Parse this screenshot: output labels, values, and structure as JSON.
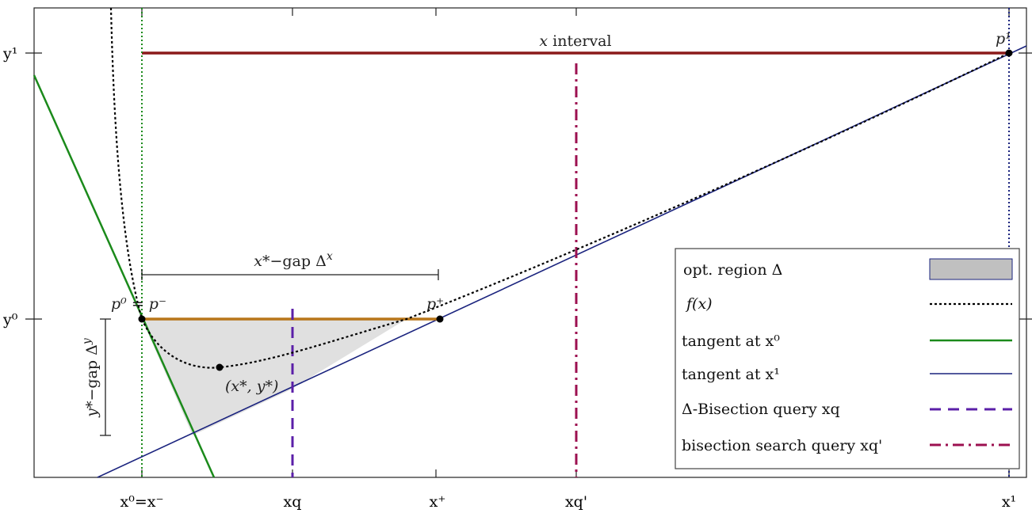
{
  "diagram": {
    "x_ticks": {
      "x0": "x⁰=x⁻",
      "xq": "xq",
      "xplus": "x⁺",
      "xqprime": "xq'",
      "x1": "x¹"
    },
    "y_ticks": {
      "y1": "y¹",
      "y0": "y⁰"
    },
    "annotations": {
      "x_interval": {
        "var": "x",
        "text": " interval"
      },
      "x_gap": {
        "var": "x*",
        "mid": "−gap ",
        "delta": "Δ",
        "sup": "x"
      },
      "y_gap": {
        "var": "y*",
        "mid": "−gap ",
        "delta": "Δ",
        "sup": "y"
      },
      "p0": "p⁰ = p⁻",
      "p1": "p¹",
      "pplus": "p⁺",
      "star_point": "(x*, y*)"
    },
    "legend": [
      {
        "label": "opt. region Δ",
        "style": "fill",
        "color": "#c8c8c8",
        "edge": "#1a237e"
      },
      {
        "label": "f(x)",
        "style": "dotted",
        "color": "#000000"
      },
      {
        "label": "tangent at x⁰",
        "style": "solid",
        "color": "#1b8a1b"
      },
      {
        "label": "tangent at x¹",
        "style": "solid",
        "color": "#1a237e"
      },
      {
        "label": "Δ-Bisection query xq",
        "style": "dashed",
        "color": "#5b1fa8"
      },
      {
        "label": "bisection search query xq'",
        "style": "dashdot",
        "color": "#9c1050"
      }
    ],
    "colors": {
      "interval": "#8b1a1a",
      "gap_bar": "#b8761a",
      "x0_line": "#1b8a1b",
      "x1_line": "#1a237e"
    }
  }
}
